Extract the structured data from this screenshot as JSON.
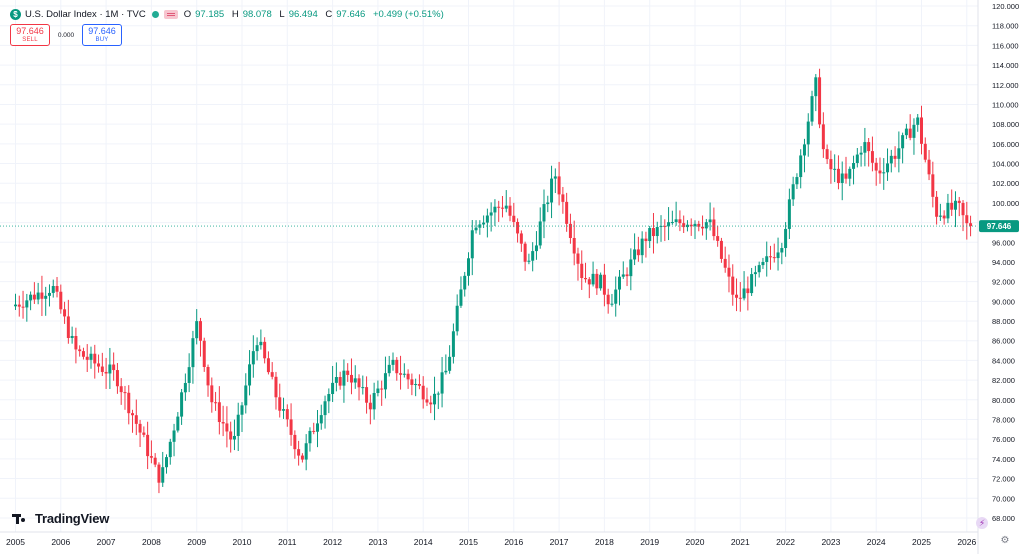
{
  "header": {
    "symbol_icon": "$",
    "title": "U.S. Dollar Index · 1M · TVC",
    "ohlc": [
      {
        "key": "O",
        "value": "97.185"
      },
      {
        "key": "H",
        "value": "98.078"
      },
      {
        "key": "L",
        "value": "96.494"
      },
      {
        "key": "C",
        "value": "97.646"
      }
    ],
    "change": "+0.499 (+0.51%)"
  },
  "trade": {
    "sell_price": "97.646",
    "sell_label": "SELL",
    "spread": "0.000",
    "buy_price": "97.646",
    "buy_label": "BUY"
  },
  "logo_text": "TradingView",
  "icons": {
    "bolt": "⚡",
    "gear": "⚙"
  },
  "colors": {
    "up": "#089981",
    "down": "#f23645",
    "grid": "#f0f3fa",
    "price_line": "#22ab94"
  },
  "chart_data": {
    "type": "candlestick",
    "interval": "1M",
    "ylim": [
      68,
      120
    ],
    "y_ticks": [
      "68.000",
      "70.000",
      "72.000",
      "74.000",
      "76.000",
      "78.000",
      "80.000",
      "82.000",
      "84.000",
      "86.000",
      "88.000",
      "90.000",
      "92.000",
      "94.000",
      "96.000",
      "98.000",
      "100.000",
      "102.000",
      "104.000",
      "106.000",
      "108.000",
      "110.000",
      "112.000",
      "114.000",
      "116.000",
      "118.000",
      "120.000"
    ],
    "x_ticks": [
      "2005",
      "2006",
      "2007",
      "2008",
      "2009",
      "2010",
      "2011",
      "2012",
      "2013",
      "2014",
      "2015",
      "2016",
      "2017",
      "2018",
      "2019",
      "2020",
      "2021",
      "2022",
      "2023",
      "2024",
      "2025",
      "2026"
    ],
    "current_price": 97.646,
    "anchors": [
      [
        2005.0,
        89.5
      ],
      [
        2005.9,
        91.5
      ],
      [
        2006.4,
        85
      ],
      [
        2006.9,
        83.5
      ],
      [
        2007.3,
        82.5
      ],
      [
        2007.9,
        76
      ],
      [
        2008.2,
        72.5
      ],
      [
        2008.3,
        72
      ],
      [
        2008.7,
        79.5
      ],
      [
        2009.1,
        88
      ],
      [
        2009.4,
        80
      ],
      [
        2009.9,
        75.5
      ],
      [
        2010.4,
        86.5
      ],
      [
        2010.9,
        79.5
      ],
      [
        2011.4,
        74
      ],
      [
        2011.9,
        80
      ],
      [
        2012.4,
        83
      ],
      [
        2012.9,
        79.5
      ],
      [
        2013.4,
        83.5
      ],
      [
        2014.3,
        80
      ],
      [
        2014.6,
        83
      ],
      [
        2015.2,
        98
      ],
      [
        2015.9,
        100
      ],
      [
        2016.4,
        93.5
      ],
      [
        2016.99,
        103
      ],
      [
        2017.6,
        92.5
      ],
      [
        2017.99,
        92
      ],
      [
        2018.2,
        90
      ],
      [
        2018.99,
        96.5
      ],
      [
        2019.4,
        97.5
      ],
      [
        2019.9,
        98.2
      ],
      [
        2020.4,
        98
      ],
      [
        2020.99,
        89.9
      ],
      [
        2021.99,
        96
      ],
      [
        2022.75,
        112
      ],
      [
        2022.95,
        104
      ],
      [
        2023.4,
        102
      ],
      [
        2023.8,
        106.2
      ],
      [
        2024.1,
        103
      ],
      [
        2024.5,
        105
      ],
      [
        2024.99,
        108.5
      ],
      [
        2025.4,
        99
      ],
      [
        2025.9,
        99.5
      ],
      [
        2026.08,
        97.65
      ]
    ]
  }
}
